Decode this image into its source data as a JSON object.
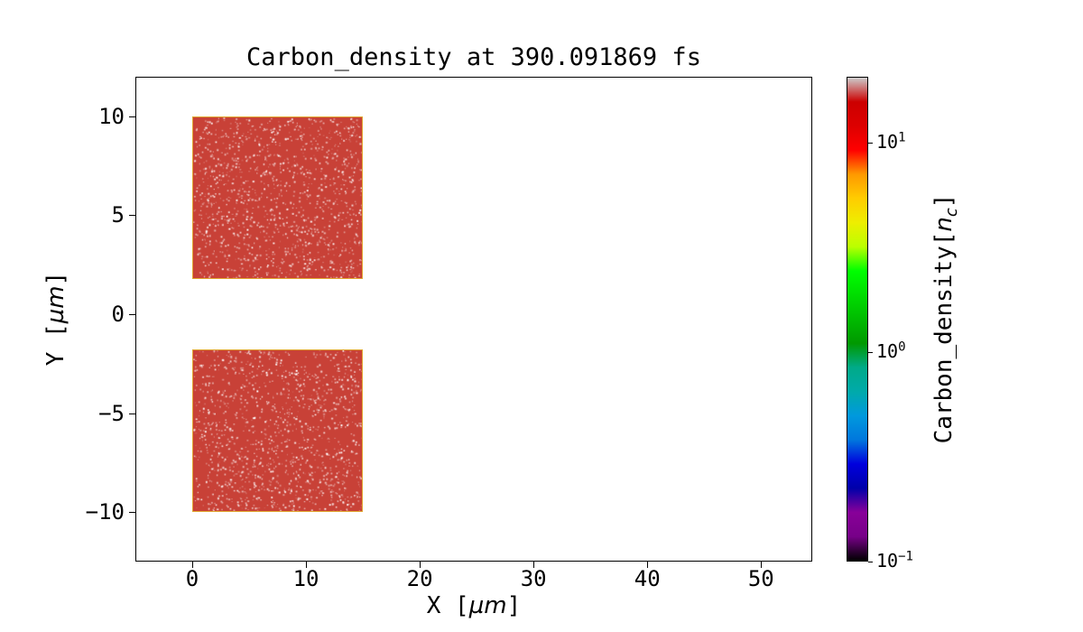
{
  "title": "Carbon_density at 390.091869 fs",
  "axis_labels": {
    "x_prefix": "X [",
    "x_unit": "µm",
    "x_suffix": "]",
    "y_prefix": "Y [",
    "y_unit": "µm",
    "y_suffix": "]"
  },
  "colorbar_label": {
    "prefix": "Carbon_density[",
    "math_base": "n",
    "math_sub": "c",
    "suffix": "]"
  },
  "chart_data": {
    "type": "heatmap",
    "title": "Carbon_density at 390.091869 fs",
    "time_fs": 390.091869,
    "xlabel": "X [µm]",
    "ylabel": "Y [µm]",
    "xlim": [
      -5,
      54.5
    ],
    "ylim": [
      -12.5,
      12
    ],
    "x_ticks": [
      0,
      10,
      20,
      30,
      40,
      50
    ],
    "y_ticks": [
      -10,
      -5,
      0,
      5,
      10
    ],
    "grid": false,
    "background_density_nc": 0,
    "regions": [
      {
        "name": "upper-slab",
        "x_range_um": [
          0,
          15
        ],
        "y_range_um": [
          1.8,
          10
        ],
        "density_nc": 11,
        "fill": "#c84137",
        "edge": "#e0a52f"
      },
      {
        "name": "lower-slab",
        "x_range_um": [
          0,
          15
        ],
        "y_range_um": [
          -10,
          -1.8
        ],
        "density_nc": 11,
        "fill": "#c84137",
        "edge": "#e0a52f"
      }
    ],
    "colorbar": {
      "label": "Carbon_density[n_c]",
      "scale": "log",
      "vmin": 0.1,
      "vmax": 20.7,
      "colormap": "nipy_spectral",
      "orientation": "vertical",
      "ticks": [
        {
          "value": 10,
          "base": "10",
          "exp": "1"
        },
        {
          "value": 1,
          "base": "10",
          "exp": "0"
        },
        {
          "value": 0.1,
          "base": "10",
          "exp": "−1"
        }
      ],
      "stops": [
        [
          0.0,
          "#000000"
        ],
        [
          0.05,
          "#770088"
        ],
        [
          0.1,
          "#880099"
        ],
        [
          0.15,
          "#0000aa"
        ],
        [
          0.2,
          "#0000dd"
        ],
        [
          0.25,
          "#0077dd"
        ],
        [
          0.3,
          "#0099dd"
        ],
        [
          0.35,
          "#00aaaa"
        ],
        [
          0.4,
          "#00aa88"
        ],
        [
          0.45,
          "#009900"
        ],
        [
          0.5,
          "#00bb00"
        ],
        [
          0.55,
          "#00dd00"
        ],
        [
          0.6,
          "#00ff00"
        ],
        [
          0.65,
          "#bbff00"
        ],
        [
          0.7,
          "#eeee00"
        ],
        [
          0.75,
          "#ffcc00"
        ],
        [
          0.8,
          "#ff9900"
        ],
        [
          0.85,
          "#ff0000"
        ],
        [
          0.9,
          "#dd0000"
        ],
        [
          0.95,
          "#cc0000"
        ],
        [
          1.0,
          "#cccccc"
        ]
      ],
      "speckle_color": "#ffffff"
    }
  }
}
